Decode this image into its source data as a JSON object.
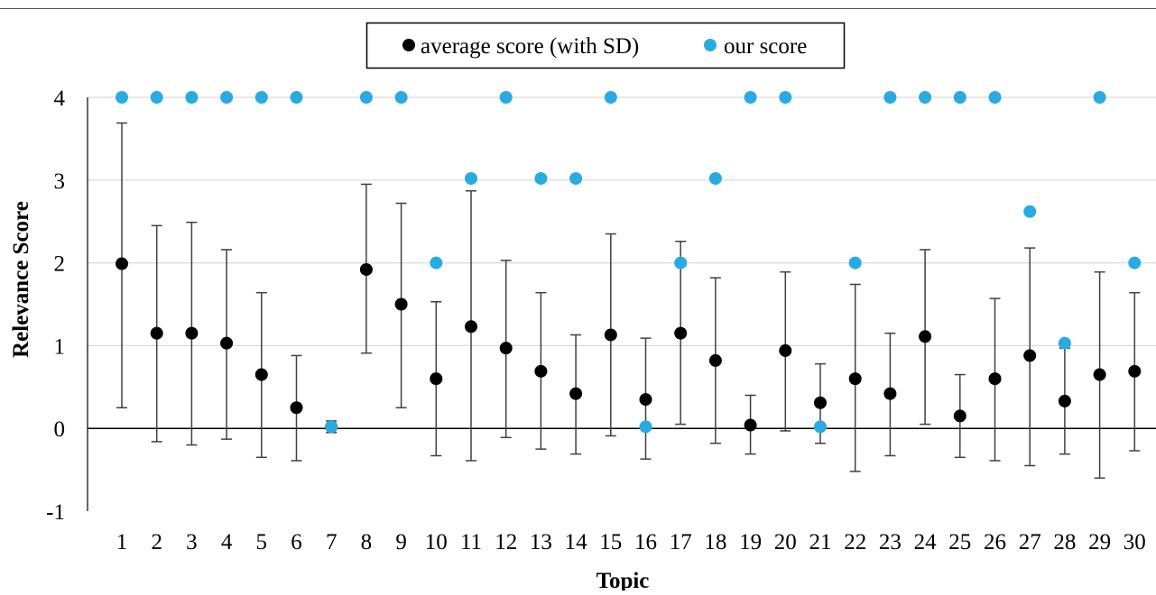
{
  "chart_data": {
    "type": "scatter",
    "title": "",
    "xlabel": "Topic",
    "ylabel": "Relevance Score",
    "ylim": [
      -1,
      4
    ],
    "yticks": [
      -1,
      0,
      1,
      2,
      3,
      4
    ],
    "grid": true,
    "legend_position": "top-center",
    "categories": [
      "1",
      "2",
      "3",
      "4",
      "5",
      "6",
      "7",
      "8",
      "9",
      "10",
      "11",
      "12",
      "13",
      "14",
      "15",
      "16",
      "17",
      "18",
      "19",
      "20",
      "21",
      "22",
      "23",
      "24",
      "25",
      "26",
      "27",
      "28",
      "29",
      "30"
    ],
    "series": [
      {
        "name": "average score (with SD)",
        "color": "#000000",
        "values": [
          1.99,
          1.15,
          1.15,
          1.03,
          0.65,
          0.25,
          0.02,
          1.92,
          1.5,
          0.6,
          1.23,
          0.97,
          0.69,
          0.42,
          1.13,
          0.35,
          1.15,
          0.82,
          0.04,
          0.94,
          0.31,
          0.6,
          0.42,
          1.11,
          0.15,
          0.6,
          0.88,
          0.33,
          0.65,
          0.69
        ],
        "sd_upper": [
          3.69,
          2.45,
          2.49,
          2.16,
          1.64,
          0.88,
          0.09,
          2.95,
          2.72,
          1.53,
          2.87,
          2.03,
          1.64,
          1.13,
          2.35,
          1.09,
          2.26,
          1.82,
          0.4,
          1.89,
          0.78,
          1.74,
          1.15,
          2.16,
          0.65,
          1.57,
          2.18,
          0.97,
          1.89,
          1.64
        ],
        "sd_lower": [
          0.25,
          -0.16,
          -0.2,
          -0.13,
          -0.35,
          -0.39,
          -0.05,
          0.91,
          0.25,
          -0.33,
          -0.39,
          -0.11,
          -0.25,
          -0.31,
          -0.09,
          -0.37,
          0.05,
          -0.18,
          -0.31,
          -0.03,
          -0.18,
          -0.52,
          -0.33,
          0.05,
          -0.35,
          -0.39,
          -0.45,
          -0.31,
          -0.6,
          -0.27
        ]
      },
      {
        "name": "our score",
        "color": "#29abe2",
        "values": [
          4,
          4,
          4,
          4,
          4,
          4,
          0.02,
          4,
          4,
          2,
          3.02,
          4,
          3.02,
          3.02,
          4,
          0.02,
          2,
          3.02,
          4,
          4,
          0.02,
          2,
          4,
          4,
          4,
          4,
          2.62,
          1.03,
          4,
          2
        ]
      }
    ]
  }
}
